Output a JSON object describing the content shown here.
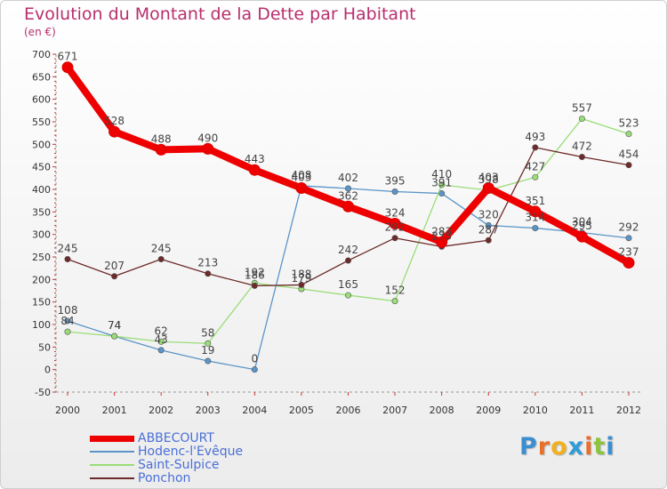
{
  "header": {
    "title": "Evolution du Montant de la Dette par Habitant",
    "subtitle": "(en €)"
  },
  "brand": {
    "letters": [
      "P",
      "r",
      "o",
      "x",
      "i",
      "t",
      "i"
    ],
    "colors": [
      "#3b8fd1",
      "#e8702a",
      "#f2b01e",
      "#2f9bd7",
      "#e8702a",
      "#8cc43f",
      "#3b8fd1"
    ]
  },
  "chart_data": {
    "type": "line",
    "title": "Evolution du Montant de la Dette par Habitant",
    "subtitle": "(en €)",
    "xlabel": "",
    "ylabel": "",
    "x": [
      "2000",
      "2001",
      "2002",
      "2003",
      "2004",
      "2005",
      "2006",
      "2007",
      "2008",
      "2009",
      "2010",
      "2011",
      "2012"
    ],
    "ylim": [
      -50,
      700
    ],
    "yticks": [
      -50,
      0,
      50,
      100,
      150,
      200,
      250,
      300,
      350,
      400,
      450,
      500,
      550,
      600,
      650,
      700
    ],
    "grid": false,
    "legend_position": "bottom-left",
    "series": [
      {
        "name": "ABBECOURT",
        "color": "#ee0000",
        "values": [
          671,
          528,
          488,
          490,
          443,
          403,
          362,
          324,
          283,
          403,
          351,
          295,
          237
        ],
        "labels": [
          "671",
          "528",
          "488",
          "490",
          "443",
          "403",
          "362",
          "324",
          "283",
          "403",
          "351",
          "295",
          "237"
        ]
      },
      {
        "name": "Hodenc-l'Evêque",
        "color": "#5b95c8",
        "values": [
          108,
          74,
          43,
          19,
          0,
          408,
          402,
          395,
          391,
          320,
          314,
          304,
          292
        ],
        "labels": [
          "108",
          "74",
          "43",
          "19",
          "0",
          "408",
          "402",
          "395",
          "391",
          "320",
          "314",
          "304",
          "292"
        ]
      },
      {
        "name": "Saint-Sulpice",
        "color": "#99dd77",
        "values": [
          84,
          74,
          62,
          58,
          192,
          179,
          165,
          152,
          410,
          398,
          427,
          557,
          523
        ],
        "labels": [
          "84",
          "74",
          "62",
          "58",
          "192",
          "179",
          "165",
          "152",
          "410",
          "398",
          "427",
          "557",
          "523"
        ]
      },
      {
        "name": "Ponchon",
        "color": "#6e2a2a",
        "values": [
          245,
          207,
          245,
          213,
          186,
          188,
          242,
          292,
          273,
          287,
          493,
          472,
          454
        ],
        "labels": [
          "245",
          "207",
          "245",
          "213",
          "186",
          "188",
          "242",
          "292",
          "273",
          "287",
          "493",
          "472",
          "454"
        ]
      }
    ]
  }
}
